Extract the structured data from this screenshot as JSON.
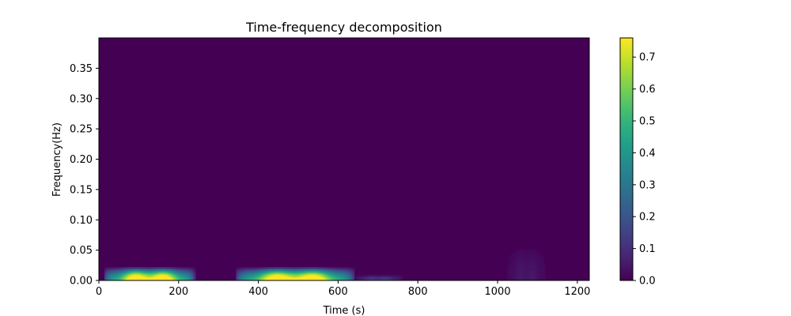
{
  "chart_data": {
    "type": "heatmap",
    "title": "Time-frequency decomposition",
    "xlabel": "Time (s)",
    "ylabel": "Frequency(Hz)",
    "xlim": [
      0,
      1230
    ],
    "ylim": [
      0,
      0.4
    ],
    "xticks": [
      0,
      200,
      400,
      600,
      800,
      1000,
      1200
    ],
    "yticks": [
      0.0,
      0.05,
      0.1,
      0.15,
      0.2,
      0.25,
      0.3,
      0.35
    ],
    "colormap": "viridis",
    "colorbar": {
      "min": 0,
      "max": 0.76,
      "ticks": [
        0.0,
        0.1,
        0.2,
        0.3,
        0.4,
        0.5,
        0.6,
        0.7
      ]
    },
    "background_value": 0,
    "blobs": [
      {
        "t_start": 10,
        "t_end": 240,
        "f_max": 0.022,
        "peak": 0.76
      },
      {
        "t_start": 340,
        "t_end": 640,
        "f_max": 0.022,
        "peak": 0.76
      },
      {
        "t_start": 640,
        "t_end": 760,
        "f_max": 0.01,
        "peak": 0.12
      },
      {
        "t_start": 1020,
        "t_end": 1120,
        "f_max": 0.06,
        "peak": 0.04
      }
    ]
  }
}
